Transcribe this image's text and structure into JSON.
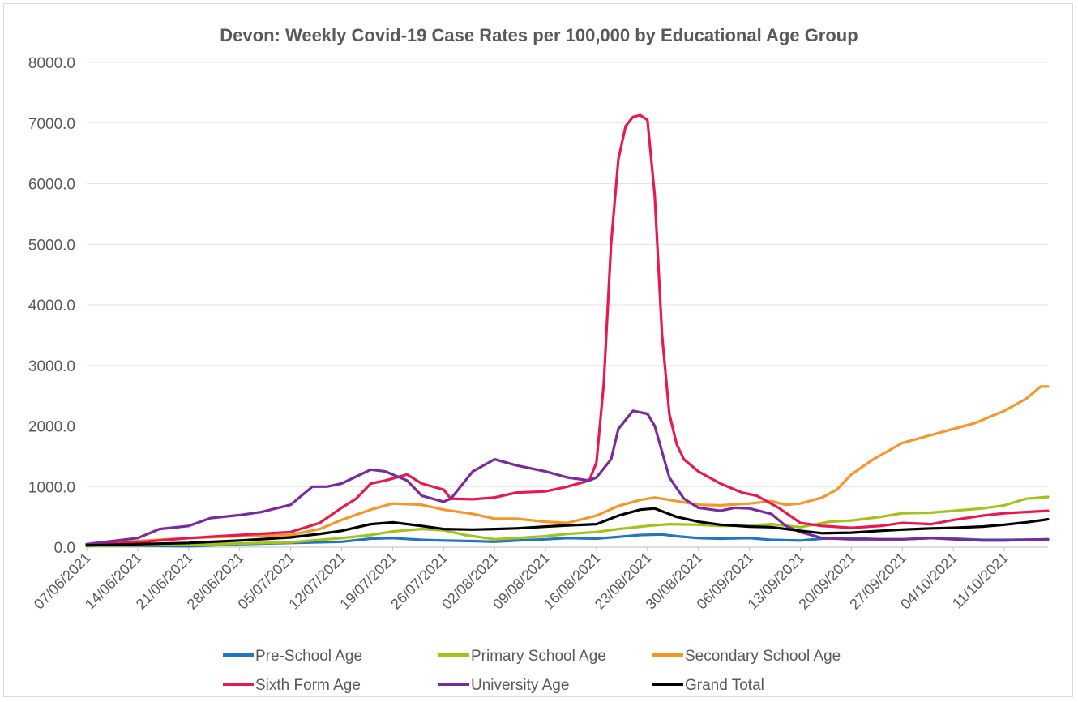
{
  "chart_data": {
    "type": "line",
    "title": "Devon: Weekly Covid-19 Case Rates per 100,000 by Educational Age Group",
    "xlabel": "",
    "ylabel": "",
    "ylim": [
      0,
      8000
    ],
    "yticks": [
      "0.0",
      "1000.0",
      "2000.0",
      "3000.0",
      "4000.0",
      "5000.0",
      "6000.0",
      "7000.0",
      "8000.0"
    ],
    "x_start": "07/06/2021",
    "x_end": "17/10/2021",
    "xticks": [
      "07/06/2021",
      "14/06/2021",
      "21/06/2021",
      "28/06/2021",
      "05/07/2021",
      "12/07/2021",
      "19/07/2021",
      "26/07/2021",
      "02/08/2021",
      "09/08/2021",
      "16/08/2021",
      "23/08/2021",
      "30/08/2021",
      "06/09/2021",
      "13/09/2021",
      "20/09/2021",
      "27/09/2021",
      "04/10/2021",
      "11/10/2021"
    ],
    "grid": "horizontal",
    "legend": "bottom",
    "series": [
      {
        "name": "Pre-School Age",
        "color": "#1f77c2",
        "points": [
          [
            "07/06/2021",
            20
          ],
          [
            "14/06/2021",
            25
          ],
          [
            "21/06/2021",
            15
          ],
          [
            "28/06/2021",
            50
          ],
          [
            "05/07/2021",
            70
          ],
          [
            "12/07/2021",
            90
          ],
          [
            "16/07/2021",
            140
          ],
          [
            "19/07/2021",
            150
          ],
          [
            "23/07/2021",
            120
          ],
          [
            "26/07/2021",
            110
          ],
          [
            "30/07/2021",
            100
          ],
          [
            "02/08/2021",
            90
          ],
          [
            "05/08/2021",
            110
          ],
          [
            "09/08/2021",
            130
          ],
          [
            "12/08/2021",
            150
          ],
          [
            "16/08/2021",
            140
          ],
          [
            "19/08/2021",
            170
          ],
          [
            "22/08/2021",
            200
          ],
          [
            "25/08/2021",
            210
          ],
          [
            "27/08/2021",
            180
          ],
          [
            "30/08/2021",
            150
          ],
          [
            "02/09/2021",
            140
          ],
          [
            "06/09/2021",
            150
          ],
          [
            "09/09/2021",
            120
          ],
          [
            "13/09/2021",
            110
          ],
          [
            "16/09/2021",
            140
          ],
          [
            "20/09/2021",
            150
          ],
          [
            "24/09/2021",
            130
          ],
          [
            "27/09/2021",
            130
          ],
          [
            "01/10/2021",
            150
          ],
          [
            "04/10/2021",
            140
          ],
          [
            "08/10/2021",
            120
          ],
          [
            "11/10/2021",
            120
          ],
          [
            "15/10/2021",
            125
          ],
          [
            "17/10/2021",
            130
          ]
        ]
      },
      {
        "name": "Primary School Age",
        "color": "#a4c31a",
        "points": [
          [
            "07/06/2021",
            20
          ],
          [
            "14/06/2021",
            30
          ],
          [
            "21/06/2021",
            40
          ],
          [
            "28/06/2021",
            60
          ],
          [
            "05/07/2021",
            80
          ],
          [
            "12/07/2021",
            150
          ],
          [
            "16/07/2021",
            200
          ],
          [
            "19/07/2021",
            260
          ],
          [
            "23/07/2021",
            300
          ],
          [
            "26/07/2021",
            280
          ],
          [
            "29/07/2021",
            200
          ],
          [
            "02/08/2021",
            130
          ],
          [
            "05/08/2021",
            150
          ],
          [
            "09/08/2021",
            180
          ],
          [
            "12/08/2021",
            220
          ],
          [
            "16/08/2021",
            250
          ],
          [
            "19/08/2021",
            300
          ],
          [
            "23/08/2021",
            350
          ],
          [
            "26/08/2021",
            380
          ],
          [
            "30/08/2021",
            370
          ],
          [
            "02/09/2021",
            350
          ],
          [
            "06/09/2021",
            360
          ],
          [
            "09/09/2021",
            380
          ],
          [
            "13/09/2021",
            330
          ],
          [
            "17/09/2021",
            420
          ],
          [
            "20/09/2021",
            440
          ],
          [
            "24/09/2021",
            500
          ],
          [
            "27/09/2021",
            560
          ],
          [
            "01/10/2021",
            570
          ],
          [
            "04/10/2021",
            600
          ],
          [
            "08/10/2021",
            640
          ],
          [
            "11/10/2021",
            690
          ],
          [
            "14/10/2021",
            800
          ],
          [
            "17/10/2021",
            830
          ]
        ]
      },
      {
        "name": "Secondary School Age",
        "color": "#f5962a",
        "points": [
          [
            "07/06/2021",
            30
          ],
          [
            "14/06/2021",
            100
          ],
          [
            "21/06/2021",
            150
          ],
          [
            "28/06/2021",
            180
          ],
          [
            "05/07/2021",
            200
          ],
          [
            "09/07/2021",
            300
          ],
          [
            "12/07/2021",
            450
          ],
          [
            "16/07/2021",
            620
          ],
          [
            "19/07/2021",
            720
          ],
          [
            "23/07/2021",
            700
          ],
          [
            "26/07/2021",
            620
          ],
          [
            "30/07/2021",
            550
          ],
          [
            "02/08/2021",
            470
          ],
          [
            "05/08/2021",
            470
          ],
          [
            "09/08/2021",
            420
          ],
          [
            "12/08/2021",
            400
          ],
          [
            "16/08/2021",
            520
          ],
          [
            "19/08/2021",
            680
          ],
          [
            "22/08/2021",
            780
          ],
          [
            "24/08/2021",
            820
          ],
          [
            "27/08/2021",
            760
          ],
          [
            "30/08/2021",
            700
          ],
          [
            "02/09/2021",
            690
          ],
          [
            "06/09/2021",
            720
          ],
          [
            "09/09/2021",
            760
          ],
          [
            "11/09/2021",
            700
          ],
          [
            "13/09/2021",
            720
          ],
          [
            "16/09/2021",
            820
          ],
          [
            "18/09/2021",
            950
          ],
          [
            "20/09/2021",
            1200
          ],
          [
            "23/09/2021",
            1450
          ],
          [
            "27/09/2021",
            1720
          ],
          [
            "30/09/2021",
            1820
          ],
          [
            "04/10/2021",
            1950
          ],
          [
            "07/10/2021",
            2050
          ],
          [
            "11/10/2021",
            2250
          ],
          [
            "14/10/2021",
            2450
          ],
          [
            "16/10/2021",
            2650
          ],
          [
            "17/10/2021",
            2650
          ]
        ]
      },
      {
        "name": "Sixth Form Age",
        "color": "#e8194f",
        "points": [
          [
            "07/06/2021",
            50
          ],
          [
            "14/06/2021",
            80
          ],
          [
            "21/06/2021",
            150
          ],
          [
            "28/06/2021",
            200
          ],
          [
            "05/07/2021",
            250
          ],
          [
            "09/07/2021",
            400
          ],
          [
            "12/07/2021",
            650
          ],
          [
            "14/07/2021",
            800
          ],
          [
            "16/07/2021",
            1050
          ],
          [
            "18/07/2021",
            1100
          ],
          [
            "21/07/2021",
            1200
          ],
          [
            "23/07/2021",
            1050
          ],
          [
            "26/07/2021",
            950
          ],
          [
            "27/07/2021",
            800
          ],
          [
            "30/07/2021",
            790
          ],
          [
            "02/08/2021",
            820
          ],
          [
            "05/08/2021",
            900
          ],
          [
            "09/08/2021",
            920
          ],
          [
            "12/08/2021",
            1000
          ],
          [
            "15/08/2021",
            1100
          ],
          [
            "16/08/2021",
            1400
          ],
          [
            "17/08/2021",
            2700
          ],
          [
            "18/08/2021",
            5000
          ],
          [
            "19/08/2021",
            6400
          ],
          [
            "20/08/2021",
            6950
          ],
          [
            "21/08/2021",
            7100
          ],
          [
            "22/08/2021",
            7130
          ],
          [
            "23/08/2021",
            7050
          ],
          [
            "24/08/2021",
            5800
          ],
          [
            "25/08/2021",
            3500
          ],
          [
            "26/08/2021",
            2200
          ],
          [
            "27/08/2021",
            1700
          ],
          [
            "28/08/2021",
            1450
          ],
          [
            "30/08/2021",
            1250
          ],
          [
            "02/09/2021",
            1050
          ],
          [
            "05/09/2021",
            900
          ],
          [
            "07/09/2021",
            850
          ],
          [
            "10/09/2021",
            650
          ],
          [
            "13/09/2021",
            400
          ],
          [
            "16/09/2021",
            350
          ],
          [
            "20/09/2021",
            320
          ],
          [
            "24/09/2021",
            350
          ],
          [
            "27/09/2021",
            400
          ],
          [
            "01/10/2021",
            380
          ],
          [
            "04/10/2021",
            450
          ],
          [
            "08/10/2021",
            520
          ],
          [
            "11/10/2021",
            560
          ],
          [
            "14/10/2021",
            580
          ],
          [
            "17/10/2021",
            600
          ]
        ]
      },
      {
        "name": "University Age",
        "color": "#7b2a9b",
        "points": [
          [
            "07/06/2021",
            50
          ],
          [
            "14/06/2021",
            150
          ],
          [
            "17/06/2021",
            300
          ],
          [
            "21/06/2021",
            350
          ],
          [
            "24/06/2021",
            480
          ],
          [
            "28/06/2021",
            530
          ],
          [
            "01/07/2021",
            580
          ],
          [
            "05/07/2021",
            700
          ],
          [
            "08/07/2021",
            1000
          ],
          [
            "10/07/2021",
            1000
          ],
          [
            "12/07/2021",
            1050
          ],
          [
            "16/07/2021",
            1280
          ],
          [
            "18/07/2021",
            1250
          ],
          [
            "21/07/2021",
            1100
          ],
          [
            "23/07/2021",
            850
          ],
          [
            "26/07/2021",
            750
          ],
          [
            "27/07/2021",
            800
          ],
          [
            "30/07/2021",
            1250
          ],
          [
            "02/08/2021",
            1450
          ],
          [
            "05/08/2021",
            1350
          ],
          [
            "09/08/2021",
            1250
          ],
          [
            "12/08/2021",
            1150
          ],
          [
            "15/08/2021",
            1100
          ],
          [
            "16/08/2021",
            1150
          ],
          [
            "18/08/2021",
            1450
          ],
          [
            "19/08/2021",
            1950
          ],
          [
            "21/08/2021",
            2250
          ],
          [
            "23/08/2021",
            2200
          ],
          [
            "24/08/2021",
            2000
          ],
          [
            "26/08/2021",
            1150
          ],
          [
            "28/08/2021",
            800
          ],
          [
            "30/08/2021",
            650
          ],
          [
            "02/09/2021",
            600
          ],
          [
            "04/09/2021",
            650
          ],
          [
            "06/09/2021",
            640
          ],
          [
            "09/09/2021",
            550
          ],
          [
            "11/09/2021",
            350
          ],
          [
            "13/09/2021",
            250
          ],
          [
            "16/09/2021",
            150
          ],
          [
            "20/09/2021",
            130
          ],
          [
            "24/09/2021",
            130
          ],
          [
            "27/09/2021",
            130
          ],
          [
            "01/10/2021",
            150
          ],
          [
            "04/10/2021",
            130
          ],
          [
            "08/10/2021",
            110
          ],
          [
            "11/10/2021",
            110
          ],
          [
            "14/10/2021",
            120
          ],
          [
            "17/10/2021",
            130
          ]
        ]
      },
      {
        "name": "Grand Total",
        "color": "#000000",
        "points": [
          [
            "07/06/2021",
            30
          ],
          [
            "14/06/2021",
            50
          ],
          [
            "21/06/2021",
            70
          ],
          [
            "28/06/2021",
            110
          ],
          [
            "05/07/2021",
            160
          ],
          [
            "09/07/2021",
            220
          ],
          [
            "12/07/2021",
            270
          ],
          [
            "16/07/2021",
            380
          ],
          [
            "19/07/2021",
            410
          ],
          [
            "23/07/2021",
            350
          ],
          [
            "26/07/2021",
            300
          ],
          [
            "30/07/2021",
            290
          ],
          [
            "02/08/2021",
            300
          ],
          [
            "05/08/2021",
            310
          ],
          [
            "09/08/2021",
            340
          ],
          [
            "12/08/2021",
            360
          ],
          [
            "16/08/2021",
            380
          ],
          [
            "19/08/2021",
            520
          ],
          [
            "22/08/2021",
            620
          ],
          [
            "24/08/2021",
            640
          ],
          [
            "27/08/2021",
            500
          ],
          [
            "30/08/2021",
            420
          ],
          [
            "02/09/2021",
            370
          ],
          [
            "06/09/2021",
            340
          ],
          [
            "09/09/2021",
            330
          ],
          [
            "13/09/2021",
            270
          ],
          [
            "16/09/2021",
            230
          ],
          [
            "20/09/2021",
            240
          ],
          [
            "24/09/2021",
            270
          ],
          [
            "27/09/2021",
            290
          ],
          [
            "01/10/2021",
            310
          ],
          [
            "04/10/2021",
            320
          ],
          [
            "08/10/2021",
            340
          ],
          [
            "11/10/2021",
            370
          ],
          [
            "14/10/2021",
            410
          ],
          [
            "17/10/2021",
            460
          ]
        ]
      }
    ]
  }
}
